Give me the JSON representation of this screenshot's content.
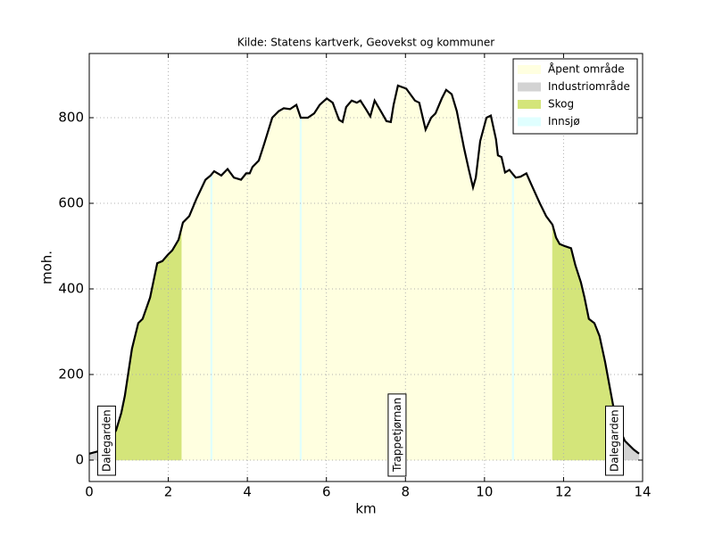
{
  "chart_data": {
    "type": "line",
    "title": "Kilde: Statens kartverk, Geovekst og kommuner",
    "xlabel": "km",
    "ylabel": "moh.",
    "x": [
      0,
      0.4,
      0.68,
      0.81,
      0.9,
      1.08,
      1.24,
      1.35,
      1.54,
      1.72,
      1.85,
      1.99,
      2.1,
      2.26,
      2.37,
      2.53,
      2.71,
      2.94,
      3.07,
      3.16,
      3.34,
      3.5,
      3.66,
      3.84,
      3.97,
      4.06,
      4.13,
      4.29,
      4.43,
      4.63,
      4.79,
      4.92,
      5.08,
      5.24,
      5.35,
      5.53,
      5.69,
      5.83,
      6.01,
      6.16,
      6.32,
      6.41,
      6.5,
      6.64,
      6.77,
      6.86,
      7.0,
      7.11,
      7.22,
      7.41,
      7.52,
      7.63,
      7.7,
      7.81,
      8.02,
      8.24,
      8.35,
      8.51,
      8.65,
      8.76,
      8.92,
      9.03,
      9.17,
      9.3,
      9.48,
      9.6,
      9.71,
      9.78,
      9.89,
      10.05,
      10.16,
      10.29,
      10.34,
      10.43,
      10.52,
      10.63,
      10.79,
      10.91,
      11.06,
      11.18,
      11.4,
      11.56,
      11.72,
      11.81,
      11.9,
      12.03,
      12.19,
      12.3,
      12.44,
      12.53,
      12.64,
      12.78,
      12.91,
      13.05,
      13.19,
      13.32,
      13.55,
      13.77,
      13.91
    ],
    "values": [
      15,
      25,
      70,
      110,
      150,
      260,
      320,
      330,
      380,
      460,
      465,
      480,
      490,
      515,
      555,
      570,
      610,
      655,
      665,
      675,
      665,
      680,
      660,
      655,
      670,
      670,
      685,
      700,
      740,
      800,
      815,
      822,
      820,
      830,
      800,
      800,
      810,
      830,
      845,
      835,
      795,
      790,
      825,
      840,
      835,
      840,
      820,
      803,
      840,
      810,
      792,
      790,
      830,
      875,
      868,
      840,
      835,
      772,
      800,
      810,
      845,
      865,
      855,
      815,
      730,
      680,
      637,
      660,
      745,
      800,
      805,
      750,
      712,
      708,
      672,
      678,
      660,
      662,
      670,
      645,
      600,
      570,
      550,
      520,
      505,
      500,
      495,
      455,
      415,
      380,
      330,
      320,
      290,
      230,
      160,
      95,
      45,
      25,
      15
    ],
    "color": "#000000",
    "areas": [
      {
        "name": "Åpent område",
        "color": "#ffffe0",
        "ranges": [
          [
            2.33,
            3.07
          ],
          [
            3.11,
            5.33
          ],
          [
            5.37,
            10.7
          ],
          [
            10.74,
            11.72
          ]
        ]
      },
      {
        "name": "Industriområde",
        "color": "#d3d3d3",
        "ranges": [
          [
            0,
            0.4
          ],
          [
            13.32,
            13.91
          ]
        ]
      },
      {
        "name": "Skog",
        "color": "#d4e57a",
        "ranges": [
          [
            0.4,
            2.33
          ],
          [
            11.72,
            13.32
          ]
        ]
      },
      {
        "name": "Innsjø",
        "color": "#e0ffff",
        "ranges": [
          [
            3.07,
            3.11
          ],
          [
            5.33,
            5.37
          ],
          [
            10.7,
            10.74
          ]
        ]
      }
    ],
    "annotations": [
      {
        "text": "Dalegarden",
        "x": 0.45
      },
      {
        "text": "Trappetjørnan",
        "x": 7.8
      },
      {
        "text": "Dalegarden",
        "x": 13.3
      }
    ],
    "xlim": [
      0,
      14
    ],
    "xticks": [
      0,
      2,
      4,
      6,
      8,
      10,
      12,
      14
    ],
    "ylim": [
      -50,
      950
    ],
    "yticks": [
      0,
      200,
      400,
      600,
      800
    ],
    "grid": true,
    "legend": "upper right"
  }
}
